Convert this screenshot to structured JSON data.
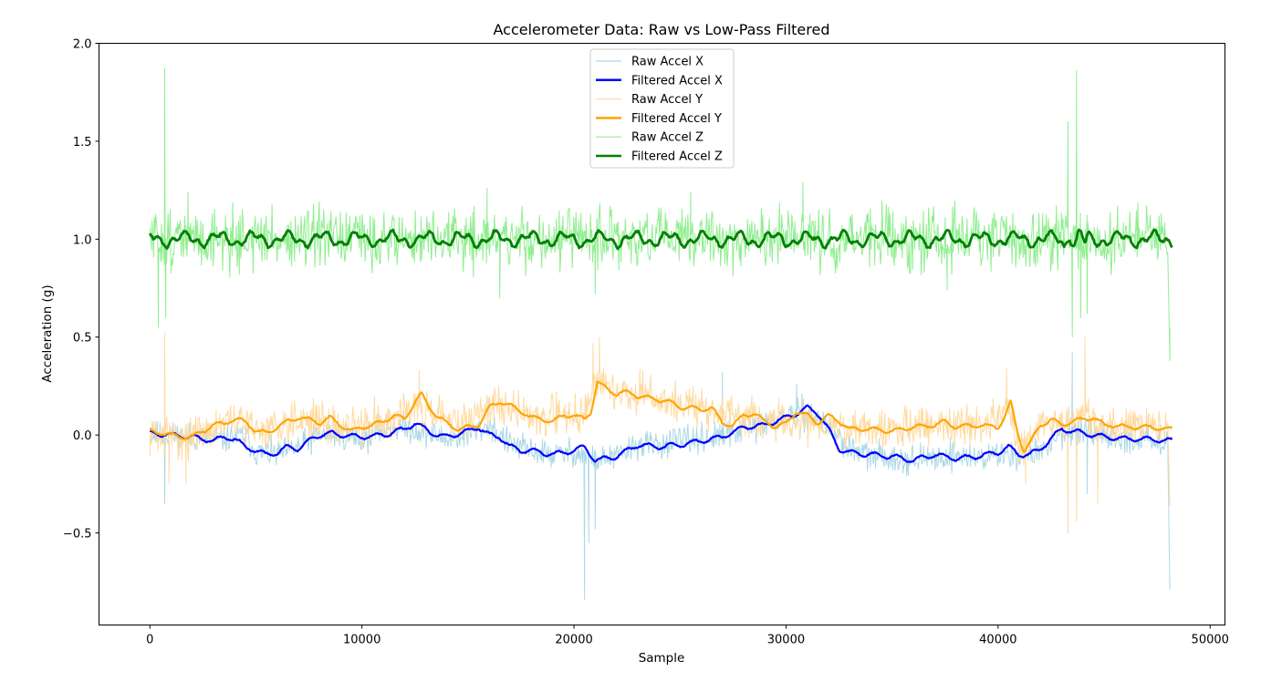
{
  "chart_data": {
    "type": "line",
    "title": "Accelerometer Data: Raw vs Low-Pass Filtered",
    "xlabel": "Sample",
    "ylabel": "Acceleration (g)",
    "xlim": [
      -2400,
      50700
    ],
    "ylim": [
      -0.97,
      2.0
    ],
    "xticks": [
      0,
      10000,
      20000,
      30000,
      40000,
      50000
    ],
    "xtick_labels": [
      "0",
      "10000",
      "20000",
      "30000",
      "40000",
      "50000"
    ],
    "yticks": [
      -0.5,
      0.0,
      0.5,
      1.0,
      1.5,
      2.0
    ],
    "ytick_labels": [
      "−0.5",
      "0.0",
      "0.5",
      "1.0",
      "1.5",
      "2.0"
    ],
    "grid": false,
    "legend_position": "top-center",
    "series": [
      {
        "name": "Raw Accel X",
        "color": "#add8e6",
        "width": 1.0,
        "kind": "raw",
        "noise": 0.035,
        "seed": 11,
        "x": [
          0,
          2000,
          3500,
          4500,
          5000,
          6000,
          7000,
          8000,
          9000,
          10000,
          11000,
          12000,
          13000,
          14000,
          15000,
          16000,
          17000,
          18000,
          19000,
          20000,
          20500,
          21000,
          22000,
          23000,
          24000,
          25000,
          26000,
          27000,
          28000,
          29000,
          30000,
          31000,
          32000,
          33000,
          34000,
          35000,
          36000,
          37000,
          38000,
          39000,
          40000,
          41000,
          42000,
          43000,
          44000,
          45000,
          46000,
          47000,
          48000
        ],
        "y": [
          0.0,
          -0.01,
          -0.02,
          0.0,
          -0.09,
          -0.1,
          -0.06,
          0.0,
          0.0,
          -0.02,
          0.03,
          0.04,
          0.01,
          -0.02,
          0.0,
          0.05,
          -0.05,
          -0.08,
          -0.1,
          -0.09,
          -0.1,
          -0.13,
          -0.11,
          -0.05,
          -0.05,
          -0.03,
          -0.02,
          -0.01,
          0.03,
          0.05,
          0.1,
          0.11,
          0.05,
          -0.07,
          -0.11,
          -0.11,
          -0.13,
          -0.12,
          -0.1,
          -0.12,
          -0.1,
          -0.1,
          -0.09,
          0.02,
          0.01,
          -0.01,
          -0.02,
          -0.02,
          -0.03
        ],
        "spikes": [
          [
            20500,
            -0.84
          ],
          [
            20700,
            -0.55
          ],
          [
            21000,
            -0.48
          ],
          [
            43500,
            0.42
          ],
          [
            44200,
            -0.3
          ],
          [
            48100,
            -0.79
          ],
          [
            27000,
            0.32
          ],
          [
            30500,
            0.26
          ],
          [
            700,
            -0.35
          ]
        ]
      },
      {
        "name": "Filtered Accel X",
        "color": "#0000ff",
        "width": 2.2,
        "kind": "filtered",
        "x": [
          0,
          1000,
          2000,
          3000,
          3500,
          4000,
          4500,
          5000,
          5500,
          6000,
          6500,
          7000,
          7500,
          8000,
          8500,
          9000,
          10000,
          11000,
          12000,
          12500,
          13000,
          13500,
          14000,
          15000,
          15500,
          16000,
          16500,
          17000,
          17500,
          18000,
          19000,
          20000,
          20500,
          21000,
          21500,
          22000,
          23000,
          24000,
          25000,
          26000,
          27000,
          28000,
          29000,
          30000,
          30500,
          31000,
          31500,
          32000,
          32500,
          33000,
          34000,
          35000,
          36000,
          37000,
          38000,
          39000,
          40000,
          40500,
          41000,
          41500,
          42000,
          42500,
          43000,
          43500,
          44000,
          45000,
          46000,
          47000,
          48200
        ],
        "y": [
          0.01,
          0.0,
          -0.01,
          -0.03,
          -0.01,
          -0.02,
          -0.06,
          -0.08,
          -0.1,
          -0.09,
          -0.06,
          -0.07,
          -0.03,
          0.0,
          0.01,
          0.0,
          -0.01,
          0.0,
          0.03,
          0.06,
          0.03,
          0.0,
          -0.01,
          0.02,
          0.04,
          0.0,
          -0.01,
          -0.06,
          -0.08,
          -0.08,
          -0.1,
          -0.08,
          -0.06,
          -0.13,
          -0.12,
          -0.11,
          -0.05,
          -0.06,
          -0.05,
          -0.03,
          -0.01,
          0.04,
          0.05,
          0.09,
          0.11,
          0.14,
          0.11,
          0.03,
          -0.07,
          -0.09,
          -0.1,
          -0.11,
          -0.13,
          -0.1,
          -0.12,
          -0.11,
          -0.09,
          -0.06,
          -0.1,
          -0.1,
          -0.07,
          -0.02,
          0.03,
          0.02,
          0.01,
          -0.01,
          -0.02,
          -0.02,
          -0.03
        ],
        "wiggle": 0.012,
        "seed": 21
      },
      {
        "name": "Raw Accel Y",
        "color": "#ffdaa0",
        "width": 1.0,
        "kind": "raw",
        "noise": 0.05,
        "seed": 31,
        "x": [
          0,
          2000,
          3500,
          4500,
          5000,
          6000,
          7000,
          8000,
          9000,
          10000,
          11000,
          12000,
          12500,
          13000,
          14000,
          15000,
          16000,
          17000,
          18000,
          19000,
          20000,
          20500,
          21000,
          22000,
          23000,
          24000,
          25000,
          26000,
          27000,
          28000,
          29000,
          30000,
          31000,
          32000,
          33000,
          34000,
          35000,
          36000,
          37000,
          38000,
          39000,
          40000,
          40500,
          41000,
          42000,
          43000,
          44000,
          45000,
          46000,
          47000,
          48000
        ],
        "y": [
          0.0,
          -0.01,
          0.06,
          0.07,
          0.02,
          0.05,
          0.09,
          0.07,
          0.03,
          0.05,
          0.08,
          0.12,
          0.19,
          0.1,
          0.07,
          0.07,
          0.16,
          0.14,
          0.09,
          0.1,
          0.11,
          0.1,
          0.27,
          0.22,
          0.21,
          0.18,
          0.15,
          0.14,
          0.1,
          0.11,
          0.06,
          0.07,
          0.06,
          0.05,
          0.03,
          0.03,
          0.03,
          0.04,
          0.05,
          0.05,
          0.05,
          0.08,
          0.17,
          -0.08,
          0.05,
          0.07,
          0.09,
          0.05,
          0.04,
          0.04,
          0.04
        ],
        "spikes": [
          [
            700,
            0.52
          ],
          [
            900,
            -0.25
          ],
          [
            1700,
            -0.25
          ],
          [
            12700,
            0.33
          ],
          [
            20900,
            0.47
          ],
          [
            21200,
            0.5
          ],
          [
            40400,
            0.34
          ],
          [
            41300,
            -0.25
          ],
          [
            43300,
            -0.5
          ],
          [
            43700,
            -0.44
          ],
          [
            44100,
            0.5
          ],
          [
            44700,
            -0.35
          ],
          [
            48100,
            -0.36
          ]
        ]
      },
      {
        "name": "Filtered Accel Y",
        "color": "#ffa500",
        "width": 2.2,
        "kind": "filtered",
        "x": [
          0,
          500,
          1000,
          1500,
          2000,
          2500,
          3000,
          3500,
          4000,
          4500,
          5000,
          5500,
          6000,
          6500,
          7000,
          7500,
          8000,
          8500,
          9000,
          9500,
          10000,
          10500,
          11000,
          11500,
          12000,
          12500,
          12800,
          13200,
          13600,
          14000,
          14500,
          15000,
          15500,
          16000,
          16500,
          17000,
          17500,
          18000,
          18500,
          19000,
          19500,
          20000,
          20500,
          20800,
          21100,
          21500,
          22000,
          22500,
          23000,
          23500,
          24000,
          24500,
          25000,
          25500,
          26000,
          26500,
          27000,
          27500,
          28000,
          28500,
          29000,
          29500,
          30000,
          30500,
          31000,
          31500,
          32000,
          32500,
          33000,
          34000,
          35000,
          36000,
          37000,
          37500,
          38000,
          39000,
          40000,
          40300,
          40600,
          40900,
          41200,
          41500,
          42000,
          42500,
          43000,
          43500,
          44000,
          44500,
          45000,
          45500,
          46000,
          47000,
          48200
        ],
        "y": [
          0.02,
          0.01,
          0.0,
          -0.01,
          -0.01,
          0.02,
          0.05,
          0.06,
          0.08,
          0.07,
          0.02,
          0.01,
          0.04,
          0.07,
          0.09,
          0.08,
          0.06,
          0.09,
          0.05,
          0.02,
          0.04,
          0.05,
          0.07,
          0.1,
          0.08,
          0.17,
          0.21,
          0.14,
          0.09,
          0.06,
          0.03,
          0.04,
          0.05,
          0.14,
          0.17,
          0.15,
          0.12,
          0.09,
          0.08,
          0.07,
          0.1,
          0.1,
          0.08,
          0.12,
          0.27,
          0.24,
          0.21,
          0.22,
          0.2,
          0.19,
          0.18,
          0.17,
          0.14,
          0.14,
          0.13,
          0.14,
          0.06,
          0.05,
          0.1,
          0.11,
          0.07,
          0.04,
          0.06,
          0.12,
          0.1,
          0.06,
          0.1,
          0.07,
          0.03,
          0.03,
          0.02,
          0.04,
          0.05,
          0.07,
          0.04,
          0.05,
          0.04,
          0.09,
          0.17,
          0.02,
          -0.08,
          -0.04,
          0.05,
          0.08,
          0.05,
          0.07,
          0.08,
          0.09,
          0.05,
          0.05,
          0.04,
          0.04,
          0.03
        ],
        "wiggle": 0.01,
        "seed": 41
      },
      {
        "name": "Raw Accel Z",
        "color": "#90ee90",
        "width": 1.0,
        "kind": "raw",
        "noise": 0.075,
        "seed": 51,
        "x": [
          0,
          48000
        ],
        "y": [
          1.0,
          1.0
        ],
        "spikes": [
          [
            700,
            1.87
          ],
          [
            750,
            0.6
          ],
          [
            400,
            0.55
          ],
          [
            1800,
            1.24
          ],
          [
            15900,
            1.26
          ],
          [
            16500,
            0.7
          ],
          [
            21000,
            0.72
          ],
          [
            25500,
            1.24
          ],
          [
            30800,
            1.29
          ],
          [
            37600,
            0.74
          ],
          [
            43300,
            1.6
          ],
          [
            43500,
            0.5
          ],
          [
            43700,
            1.86
          ],
          [
            43900,
            0.6
          ],
          [
            44200,
            0.62
          ],
          [
            48100,
            0.38
          ],
          [
            48100,
            0.55
          ]
        ]
      },
      {
        "name": "Filtered Accel Z",
        "color": "#008000",
        "width": 2.8,
        "kind": "filtered",
        "x": [
          0,
          48200
        ],
        "y": [
          1.0,
          1.0
        ],
        "wiggle": 0.028,
        "seed": 61,
        "osc": true
      }
    ]
  }
}
